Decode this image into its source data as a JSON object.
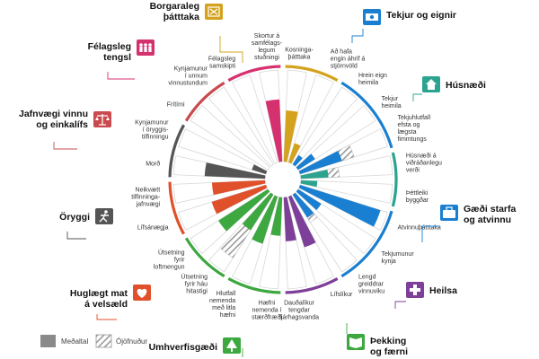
{
  "chart_data": {
    "type": "radial-bar",
    "title": "",
    "legend": [
      {
        "label": "Meðaltal",
        "style": "solid-gray"
      },
      {
        "label": "Ójöfnuður",
        "style": "hatched-gray"
      }
    ],
    "dimensions": [
      {
        "key": "civic",
        "title_lines": [
          "Borgaraleg",
          "þátttaka"
        ],
        "color": "#d4a21c",
        "icon": "ballot-icon",
        "indicators": [
          {
            "label_lines": [
              "Kosninga-",
              "þátttaka"
            ],
            "avg": 0.56,
            "ineq": 0.32
          },
          {
            "label_lines": [
              "Að hafa",
              "engin áhrif á",
              "stjórnvöld"
            ],
            "avg": 0.22,
            "ineq": 0.0
          }
        ]
      },
      {
        "key": "income",
        "title_lines": [
          "Tekjur og eignir"
        ],
        "color": "#1a7fd0",
        "icon": "money-icon",
        "indicators": [
          {
            "label_lines": [
              "Hrein eign",
              "heimila"
            ],
            "avg": 0.12,
            "ineq": 0.0
          },
          {
            "label_lines": [
              "Tekjur",
              "heimila"
            ],
            "avg": 0.22,
            "ineq": 0.08
          },
          {
            "label_lines": [
              "Tekjuhlutfall",
              "efsta og",
              "lægsta",
              "fimmtungs"
            ],
            "avg": 0.48,
            "ineq": 0.62
          }
        ]
      },
      {
        "key": "housing",
        "title_lines": [
          "Húsnæði"
        ],
        "color": "#2ba38f",
        "icon": "house-icon",
        "indicators": [
          {
            "label_lines": [
              "Húsnæði á",
              "viðráðanlegu",
              "verði"
            ],
            "avg": 0.3,
            "ineq": 0.42
          },
          {
            "label_lines": [
              "Þéttleiki",
              "byggðar"
            ],
            "avg": 0.18,
            "ineq": 0.0
          }
        ]
      },
      {
        "key": "jobs",
        "title_lines": [
          "Gæði starfa",
          "og atvinnu"
        ],
        "color": "#1a7fd0",
        "icon": "briefcase-icon",
        "indicators": [
          {
            "label_lines": [
              "Atvinnuþátttaka"
            ],
            "avg": 0.92,
            "ineq": 0.0
          },
          {
            "label_lines": [
              "Tekjumunur",
              "kynja"
            ],
            "avg": 0.3,
            "ineq": 0.0
          },
          {
            "label_lines": [
              "Lengd",
              "greiddrar",
              "vinnuviku"
            ],
            "avg": 0.3,
            "ineq": 0.36
          }
        ]
      },
      {
        "key": "health",
        "title_lines": [
          "Heilsa"
        ],
        "color": "#7e3f98",
        "icon": "health-icon",
        "indicators": [
          {
            "label_lines": [
              "Lífslíkur"
            ],
            "avg": 0.58,
            "ineq": 0.0
          },
          {
            "label_lines": [
              "Dauðalíkur",
              "tengdar",
              "fjárhagsvanda"
            ],
            "avg": 0.48,
            "ineq": 0.3
          }
        ]
      },
      {
        "key": "knowledge",
        "title_lines": [
          "Þekking",
          "og færni"
        ],
        "color": "#3da740",
        "icon": "book-icon",
        "indicators": [
          {
            "label_lines": [
              "Hæfni",
              "nemenda í",
              "stærðfræði"
            ],
            "avg": 0.42,
            "ineq": 0.0
          },
          {
            "label_lines": [
              "Hlutfall",
              "nemenda",
              "með litla",
              "hæfni"
            ],
            "avg": 0.54,
            "ineq": 0.4
          }
        ]
      },
      {
        "key": "environment",
        "title_lines": [
          "Umhverfisgæði"
        ],
        "color": "#3da740",
        "icon": "tree-icon",
        "indicators": [
          {
            "label_lines": [
              "Útsetning",
              "fyrir háu",
              "hitastigi"
            ],
            "avg": 0.46,
            "ineq": 0.82
          },
          {
            "label_lines": [
              "Útsetning",
              "fyrir",
              "loftmengun"
            ],
            "avg": 0.64,
            "ineq": 0.0
          }
        ]
      },
      {
        "key": "wellbeing",
        "title_lines": [
          "Huglægt mat",
          "á velsæld"
        ],
        "color": "#e0502a",
        "icon": "heart-icon",
        "indicators": [
          {
            "label_lines": [
              "Lífsánægja"
            ],
            "avg": 0.62,
            "ineq": 0.6
          },
          {
            "label_lines": [
              "Neikvætt",
              "tilfinninga-",
              "jafnvægi"
            ],
            "avg": 0.58,
            "ineq": 0.0
          }
        ]
      },
      {
        "key": "safety",
        "title_lines": [
          "Öryggi"
        ],
        "color": "#555555",
        "icon": "runner-icon",
        "indicators": [
          {
            "label_lines": [
              "Morð"
            ],
            "avg": 0.66,
            "ineq": 0.0
          },
          {
            "label_lines": [
              "Kynjamunur",
              "í öryggis-",
              "tilfinningu"
            ],
            "avg": 0.16,
            "ineq": 0.0
          }
        ]
      },
      {
        "key": "balance",
        "title_lines": [
          "Jafnvægi vinnu",
          "og einkalífs"
        ],
        "color": "#c94a4f",
        "icon": "scale-icon",
        "indicators": [
          {
            "label_lines": [
              "Frítími"
            ],
            "avg": 0.0,
            "ineq": 0.0
          },
          {
            "label_lines": [
              "Kynjamunur",
              "í unnum",
              "vinnustundum"
            ],
            "avg": 0.0,
            "ineq": 0.0
          }
        ]
      },
      {
        "key": "social",
        "title_lines": [
          "Félagsleg",
          "tengsl"
        ],
        "color": "#d6316f",
        "icon": "people-icon",
        "indicators": [
          {
            "label_lines": [
              "Félagsleg",
              "samskipti"
            ],
            "avg": 0.0,
            "ineq": 0.0
          },
          {
            "label_lines": [
              "Skortur á",
              "samfélags-",
              "legum",
              "stuðningi"
            ],
            "avg": 0.68,
            "ineq": 0.42
          }
        ]
      }
    ]
  }
}
